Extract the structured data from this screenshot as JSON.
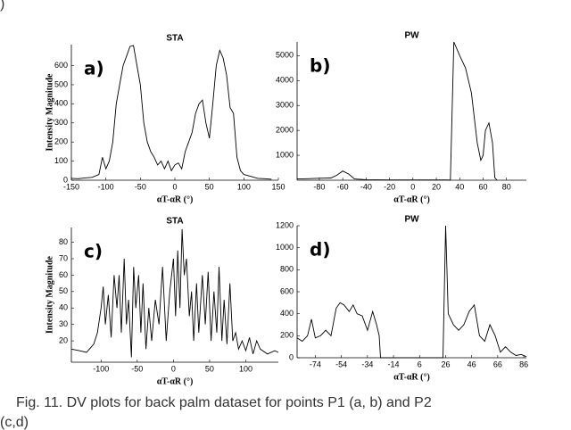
{
  "fragment": ")",
  "caption": [
    "Fig. 11.  DV plots for back palm dataset for points P1 (a, b) and P2",
    "(c,d)"
  ],
  "chart_data": [
    {
      "type": "line",
      "title": "STA",
      "label": "a)",
      "xlabel": "αT-αR (°)",
      "ylabel": "Intensity Magnitude",
      "x": [
        -150,
        -140,
        -130,
        -120,
        -110,
        -105,
        -100,
        -95,
        -90,
        -85,
        -80,
        -75,
        -70,
        -65,
        -60,
        -55,
        -50,
        -45,
        -40,
        -35,
        -30,
        -25,
        -20,
        -15,
        -10,
        -5,
        0,
        5,
        10,
        15,
        20,
        25,
        30,
        35,
        40,
        45,
        50,
        55,
        60,
        65,
        70,
        75,
        80,
        85,
        90,
        95,
        100,
        110,
        120,
        130,
        140
      ],
      "series": [
        {
          "color": "#000000",
          "values": [
            10,
            8,
            12,
            15,
            30,
            120,
            60,
            100,
            200,
            400,
            500,
            600,
            650,
            700,
            705,
            600,
            500,
            300,
            200,
            150,
            120,
            80,
            100,
            60,
            100,
            50,
            80,
            90,
            60,
            150,
            200,
            250,
            350,
            400,
            420,
            300,
            220,
            400,
            600,
            680,
            640,
            550,
            380,
            350,
            120,
            50,
            30,
            20,
            10,
            8,
            5
          ]
        }
      ],
      "xlim": [
        -150,
        150
      ],
      "ylim": [
        0,
        710
      ],
      "xticks": [
        -150,
        -100,
        -50,
        0,
        50,
        100,
        150
      ],
      "yticks": [
        0,
        100,
        200,
        300,
        400,
        500,
        600
      ]
    },
    {
      "type": "line",
      "title": "PW",
      "label": "b)",
      "xlabel": "αT-αR (°)",
      "x": [
        -99,
        -90,
        -80,
        -70,
        -65,
        -60,
        -55,
        -50,
        -40,
        -20,
        0,
        20,
        30,
        32,
        35,
        40,
        45,
        50,
        55,
        58,
        60,
        62,
        65,
        68,
        70,
        72
      ],
      "series": [
        {
          "color": "#000000",
          "values": [
            50,
            60,
            80,
            90,
            200,
            370,
            250,
            50,
            20,
            10,
            10,
            10,
            10,
            0,
            5550,
            5000,
            4500,
            3500,
            1500,
            800,
            1000,
            2000,
            2300,
            1500,
            100,
            0
          ]
        }
      ],
      "xlim": [
        -99,
        97
      ],
      "ylim": [
        0,
        5550
      ],
      "xticks": [
        -80,
        -60,
        -40,
        -20,
        0,
        20,
        40,
        60,
        80
      ],
      "yticks": [
        1000,
        2000,
        3000,
        4000,
        5000
      ]
    },
    {
      "type": "line",
      "title": "STA",
      "label": "c)",
      "xlabel": "αT-αR (°)",
      "ylabel": "Intensity Magnitude",
      "x": [
        -141,
        -130,
        -120,
        -110,
        -105,
        -100,
        -97,
        -94,
        -90,
        -86,
        -82,
        -78,
        -75,
        -72,
        -68,
        -65,
        -62,
        -58,
        -55,
        -52,
        -48,
        -45,
        -42,
        -38,
        -34,
        -30,
        -25,
        -20,
        -15,
        -10,
        -5,
        0,
        3,
        6,
        9,
        12,
        15,
        18,
        22,
        25,
        28,
        32,
        35,
        40,
        44,
        48,
        52,
        56,
        60,
        63,
        67,
        70,
        74,
        78,
        82,
        86,
        90,
        95,
        100,
        105,
        110,
        115,
        120,
        130,
        140,
        145
      ],
      "series": [
        {
          "color": "#000000",
          "values": [
            15,
            14,
            13,
            18,
            25,
            40,
            53,
            30,
            48,
            22,
            60,
            40,
            60,
            25,
            70,
            30,
            45,
            10,
            65,
            40,
            60,
            25,
            55,
            15,
            40,
            20,
            45,
            30,
            65,
            20,
            50,
            70,
            35,
            75,
            40,
            88,
            60,
            70,
            35,
            50,
            20,
            55,
            25,
            60,
            30,
            62,
            20,
            50,
            25,
            65,
            20,
            45,
            18,
            55,
            20,
            25,
            15,
            20,
            14,
            22,
            12,
            20,
            15,
            12,
            14,
            13
          ]
        }
      ],
      "xlim": [
        -141,
        145
      ],
      "ylim": [
        7,
        89
      ],
      "xticks": [
        -100,
        -50,
        0,
        50,
        100
      ],
      "yticks": [
        20,
        30,
        40,
        50,
        60,
        70,
        80
      ]
    },
    {
      "type": "line",
      "title": "PW",
      "label": "d)",
      "xlabel": "αT-αR (°)",
      "x": [
        -88,
        -84,
        -80,
        -77,
        -74,
        -70,
        -66,
        -62,
        -58,
        -55,
        -52,
        -48,
        -45,
        -42,
        -38,
        -34,
        -30,
        -27,
        -25,
        -24,
        24,
        26,
        28,
        32,
        36,
        40,
        44,
        48,
        52,
        56,
        60,
        64,
        68,
        72,
        76,
        80,
        84,
        88
      ],
      "series": [
        {
          "color": "#000000",
          "values": [
            180,
            150,
            200,
            350,
            180,
            200,
            250,
            200,
            450,
            500,
            480,
            420,
            480,
            400,
            380,
            250,
            420,
            300,
            200,
            0,
            0,
            1200,
            400,
            300,
            250,
            300,
            420,
            480,
            200,
            150,
            300,
            200,
            50,
            100,
            50,
            20,
            30,
            10
          ]
        }
      ],
      "xlim": [
        -88,
        88
      ],
      "ylim": [
        0,
        1200
      ],
      "xticks": [
        -74,
        -54,
        -34,
        -14,
        6,
        26,
        46,
        66,
        86
      ],
      "yticks": [
        0,
        200,
        400,
        600,
        800,
        1000,
        1200
      ]
    }
  ]
}
